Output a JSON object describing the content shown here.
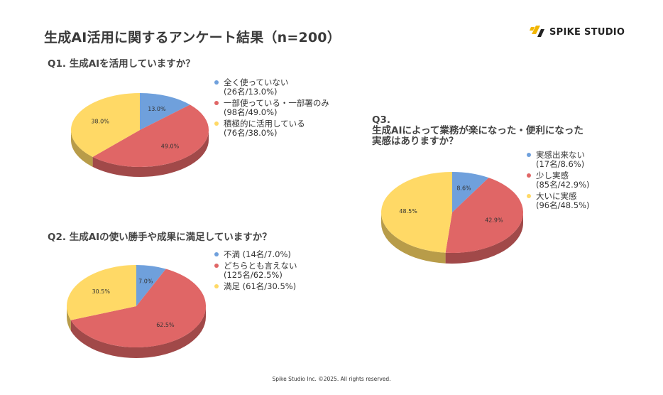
{
  "page": {
    "title": "生成AI活用に関するアンケート結果（n=200）",
    "footer": "Spike Studio Inc. ©2025. All rights reserved."
  },
  "logo": {
    "text": "SPIKE STUDIO",
    "icon": "spike-studio-logo-icon",
    "color": "#f2b600"
  },
  "colors": {
    "blue": "#6fa0dc",
    "red": "#e06666",
    "yellow": "#ffd966"
  },
  "chart_data": [
    {
      "type": "pie",
      "title": "Q1. 生成AIを活用していますか？",
      "categories": [
        "全く使っていない",
        "一部使っている・一部署のみ",
        "積極的に活用している"
      ],
      "values": [
        13.0,
        49.0,
        38.0
      ],
      "labels": [
        "13.0%",
        "49.0%",
        "38.0%"
      ],
      "legend": [
        "全く使っていない\n(26名/13.0%)",
        "一部使っている・一部署のみ\n(98名/49.0%)",
        "積極的に活用している\n(76名/38.0%)"
      ],
      "colors": [
        "#6fa0dc",
        "#e06666",
        "#ffd966"
      ],
      "legend_position": "right"
    },
    {
      "type": "pie",
      "title": "Q2. 生成AIの使い勝手や成果に満足していますか？",
      "categories": [
        "不満",
        "どちらとも言えない",
        "満足"
      ],
      "values": [
        7.0,
        62.5,
        30.5
      ],
      "labels": [
        "7.0%",
        "62.5%",
        "30.5%"
      ],
      "legend": [
        "不満 (14名/7.0%)",
        "どちらとも言えない\n(125名/62.5%)",
        "満足 (61名/30.5%)"
      ],
      "colors": [
        "#6fa0dc",
        "#e06666",
        "#ffd966"
      ],
      "legend_position": "right"
    },
    {
      "type": "pie",
      "title": "Q3.\n生成AIによって業務が楽になった・便利になった\n実感はありますか？",
      "categories": [
        "実感出来ない",
        "少し実感",
        "大いに実感"
      ],
      "values": [
        8.6,
        42.9,
        48.5
      ],
      "labels": [
        "8.6%",
        "42.9%",
        "48.5%"
      ],
      "legend": [
        "実感出来ない\n(17名/8.6%)",
        "少し実感\n(85名/42.9%)",
        "大いに実感\n(96名/48.5%)"
      ],
      "colors": [
        "#6fa0dc",
        "#e06666",
        "#ffd966"
      ],
      "legend_position": "right"
    }
  ]
}
